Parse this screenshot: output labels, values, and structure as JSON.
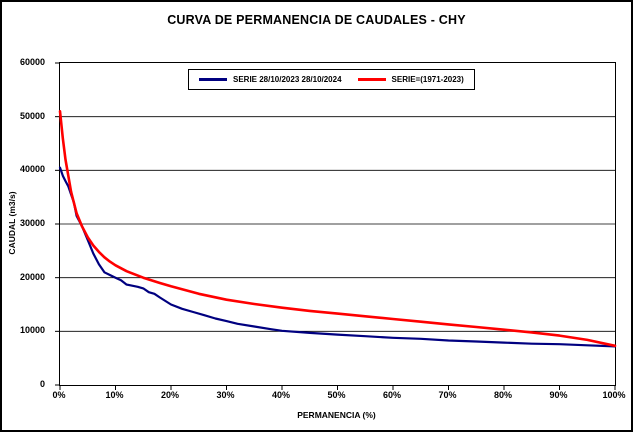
{
  "title": "CURVA DE PERMANENCIA DE CAUDALES - CHY",
  "legend": {
    "items": [
      {
        "label": "SERIE 28/10/2023 28/10/2024",
        "color": "#000080"
      },
      {
        "label": "SERIE=(1971-2023)",
        "color": "#FF0000"
      }
    ]
  },
  "axes": {
    "x_label": "PERMANENCIA (%)",
    "y_label": "CAUDAL (m3/s)",
    "x_ticks": [
      "0%",
      "10%",
      "20%",
      "30%",
      "40%",
      "50%",
      "60%",
      "70%",
      "80%",
      "90%",
      "100%"
    ],
    "y_ticks": [
      "0",
      "10000",
      "20000",
      "30000",
      "40000",
      "50000",
      "60000"
    ]
  },
  "chart_data": {
    "type": "line",
    "title": "CURVA DE PERMANENCIA DE CAUDALES - CHY",
    "xlabel": "PERMANENCIA (%)",
    "ylabel": "CAUDAL (m3/s)",
    "xlim": [
      0,
      100
    ],
    "ylim": [
      0,
      60000
    ],
    "grid": "horizontal-only",
    "legend_position": "top-center-inside",
    "series": [
      {
        "name": "SERIE 28/10/2023 28/10/2024",
        "color": "#000080",
        "width": 2.2,
        "x": [
          0,
          0.5,
          1,
          1.5,
          2,
          2.5,
          3,
          3.5,
          4,
          5,
          6,
          7,
          8,
          9,
          10,
          11,
          12,
          13,
          14,
          15,
          16,
          17,
          18,
          20,
          22,
          24,
          26,
          28,
          30,
          32,
          35,
          38,
          40,
          45,
          50,
          55,
          60,
          65,
          70,
          75,
          80,
          85,
          90,
          95,
          100
        ],
        "y": [
          40500,
          39000,
          38000,
          37000,
          35500,
          34000,
          31500,
          30500,
          29500,
          27000,
          24500,
          22500,
          21000,
          20500,
          20000,
          19500,
          18700,
          18500,
          18300,
          18000,
          17300,
          17000,
          16300,
          15000,
          14200,
          13600,
          13000,
          12400,
          11900,
          11400,
          10900,
          10400,
          10100,
          9700,
          9400,
          9100,
          8800,
          8600,
          8300,
          8100,
          7900,
          7700,
          7600,
          7400,
          7200
        ]
      },
      {
        "name": "SERIE=(1971-2023)",
        "color": "#FF0000",
        "width": 2.6,
        "x": [
          0,
          0.5,
          1,
          2,
          3,
          4,
          5,
          6,
          7,
          8,
          9,
          10,
          12,
          15,
          18,
          20,
          25,
          30,
          35,
          40,
          45,
          50,
          55,
          60,
          65,
          70,
          75,
          80,
          85,
          90,
          95,
          100
        ],
        "y": [
          51000,
          46000,
          42000,
          36000,
          32000,
          29500,
          27500,
          26000,
          24800,
          23800,
          23000,
          22300,
          21200,
          20000,
          19000,
          18400,
          17000,
          15900,
          15100,
          14400,
          13800,
          13300,
          12800,
          12300,
          11800,
          11300,
          10800,
          10300,
          9800,
          9200,
          8400,
          7300
        ]
      }
    ]
  }
}
